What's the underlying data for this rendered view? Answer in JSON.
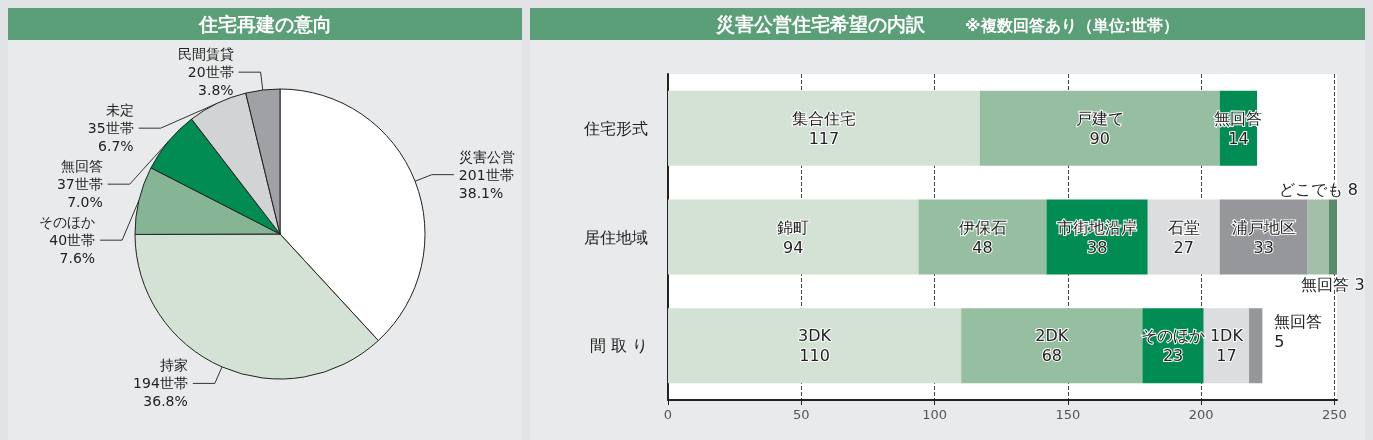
{
  "chart_data": [
    {
      "type": "pie",
      "title": "住宅再建の意向",
      "categories": [
        "災害公営",
        "持家",
        "そのほか",
        "無回答",
        "未定",
        "民間賃貸"
      ],
      "values": [
        201,
        194,
        40,
        37,
        35,
        20
      ],
      "colors": [
        "#ffffff",
        "#d3e2d5",
        "#86b596",
        "#008c52",
        "#d2d3d5",
        "#a0a1a4"
      ],
      "value_labels": [
        "201世帯\n38.1%",
        "194世帯\n36.8%",
        "40世帯\n7.6%",
        "37世帯\n7.0%",
        "35世帯\n6.7%",
        "20世帯\n3.8%"
      ]
    },
    {
      "type": "bar",
      "orientation": "horizontal",
      "stacked": true,
      "title": "災害公営住宅希望の内訳",
      "subtitle": "※複数回答あり（単位:世帯）",
      "categories": [
        "住宅形式",
        "居住地域",
        "間 取 り"
      ],
      "xlim": [
        0,
        251
      ],
      "xticks": [
        0,
        50,
        100,
        150,
        200,
        250
      ],
      "grid": "x",
      "series": [
        {
          "values": [
            117,
            94,
            110
          ],
          "colors": [
            "#d3e2d5",
            "#d3e2d5",
            "#d3e2d5"
          ],
          "value_labels": [
            "集合住宅\n117",
            "錦町\n94",
            "3DK\n110"
          ]
        },
        {
          "values": [
            90,
            48,
            68
          ],
          "colors": [
            "#96bea0",
            "#96bea0",
            "#96bea0"
          ],
          "value_labels": [
            "戸建て\n90",
            "伊保石\n48",
            "2DK\n68"
          ]
        },
        {
          "values": [
            14,
            38,
            23
          ],
          "colors": [
            "#008c52",
            "#008c52",
            "#008c52"
          ],
          "value_labels": [
            "無回答\n14",
            "市街地沿岸\n38",
            "そのほか\n23"
          ]
        },
        {
          "values": [
            null,
            27,
            17
          ],
          "colors": [
            null,
            "#dcdddf",
            "#dcdddf"
          ],
          "value_labels": [
            null,
            "石堂\n27",
            "1DK\n17"
          ]
        },
        {
          "values": [
            null,
            33,
            5
          ],
          "colors": [
            null,
            "#96979b",
            "#96979b"
          ],
          "value_labels": [
            null,
            "浦戸地区\n33",
            "無回答\n5"
          ]
        },
        {
          "values": [
            null,
            8,
            null
          ],
          "colors": [
            null,
            "#a3bfa9",
            null
          ],
          "value_labels": [
            null,
            "どこでも 8",
            null
          ]
        },
        {
          "values": [
            null,
            3,
            null
          ],
          "colors": [
            null,
            "#5a8c6c",
            null
          ],
          "value_labels": [
            null,
            "無回答 3",
            null
          ]
        }
      ]
    }
  ]
}
